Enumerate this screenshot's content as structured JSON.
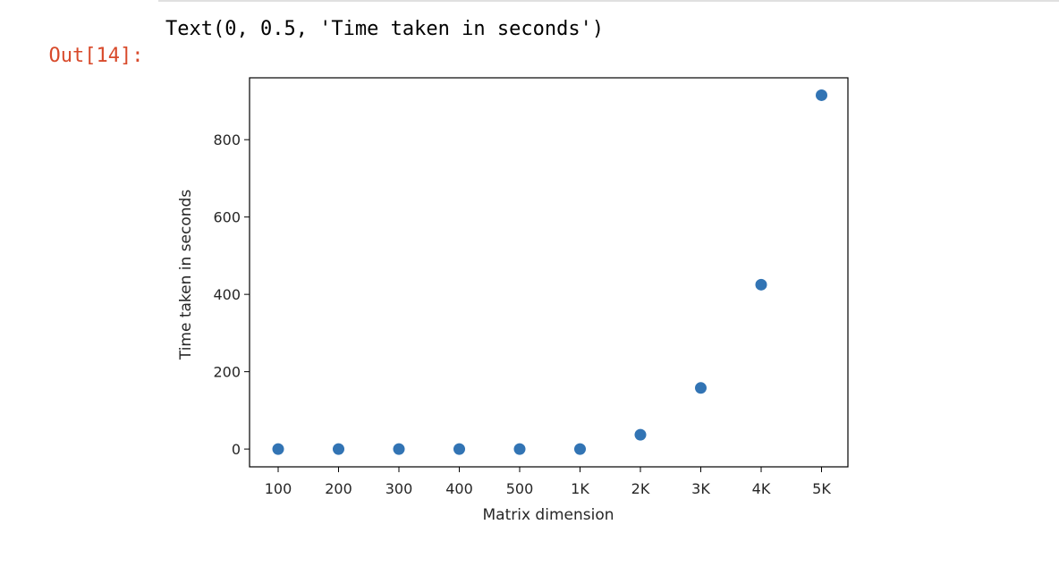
{
  "cell": {
    "prompt": "Out[14]:",
    "output_text": "Text(0, 0.5, 'Time taken in seconds')"
  },
  "chart_data": {
    "type": "scatter",
    "categories": [
      "100",
      "200",
      "300",
      "400",
      "500",
      "1K",
      "2K",
      "3K",
      "4K",
      "5K"
    ],
    "values": [
      0,
      0,
      0,
      0,
      0,
      0,
      37,
      158,
      425,
      915
    ],
    "xlabel": "Matrix dimension",
    "ylabel": "Time taken in seconds",
    "yticks": [
      0,
      200,
      400,
      600,
      800
    ],
    "ylim": [
      -46,
      960
    ],
    "marker_color": "#3274b4",
    "grid": false
  }
}
